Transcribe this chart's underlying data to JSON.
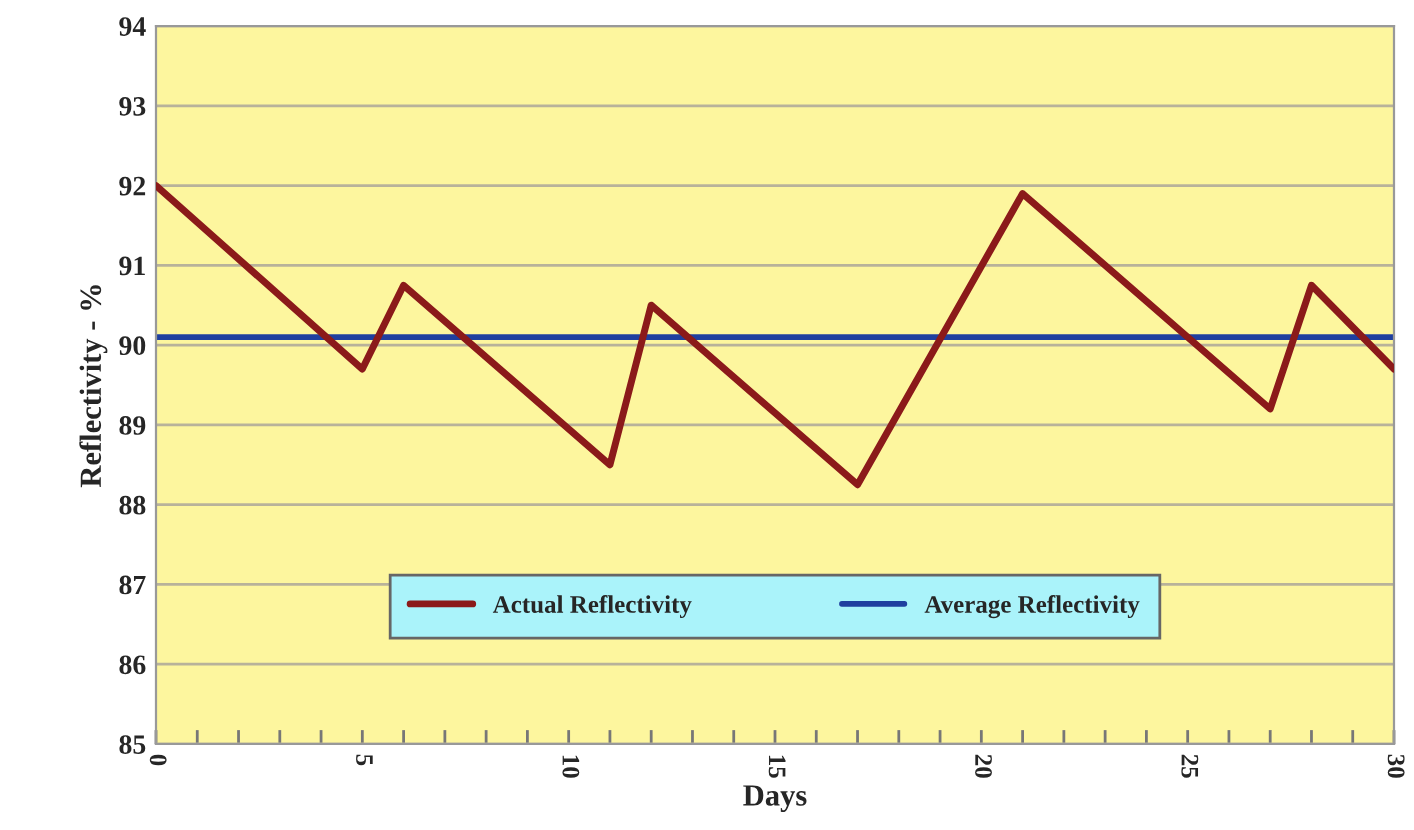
{
  "chart_data": {
    "type": "line",
    "xlabel": "Days",
    "ylabel": "Reflectivity - %",
    "series": [
      {
        "name": "Actual Reflectivity",
        "color": "#8b1a1a",
        "x": [
          0,
          5,
          6,
          11,
          12,
          17,
          21,
          27,
          28,
          30
        ],
        "values": [
          92.0,
          89.7,
          90.75,
          88.5,
          90.5,
          88.25,
          91.9,
          89.2,
          90.75,
          89.7
        ]
      }
    ],
    "ref_lines": [
      {
        "axis": "y",
        "value": 90.1,
        "label": "Average Reflectivity",
        "color": "#1f3f9f"
      }
    ],
    "xlim": [
      0,
      30
    ],
    "ylim": [
      85,
      94
    ],
    "xticks": [
      0,
      {
        "value": 1,
        "label": null
      },
      {
        "value": 2,
        "label": null
      },
      {
        "value": 3,
        "label": null
      },
      {
        "value": 4,
        "label": null
      },
      5,
      {
        "value": 6,
        "label": null
      },
      {
        "value": 7,
        "label": null
      },
      {
        "value": 8,
        "label": null
      },
      {
        "value": 9,
        "label": null
      },
      10,
      {
        "value": 11,
        "label": null
      },
      {
        "value": 12,
        "label": null
      },
      {
        "value": 13,
        "label": null
      },
      {
        "value": 14,
        "label": null
      },
      15,
      {
        "value": 16,
        "label": null
      },
      {
        "value": 17,
        "label": null
      },
      {
        "value": 18,
        "label": null
      },
      {
        "value": 19,
        "label": null
      },
      20,
      {
        "value": 21,
        "label": null
      },
      {
        "value": 22,
        "label": null
      },
      {
        "value": 23,
        "label": null
      },
      {
        "value": 24,
        "label": null
      },
      25,
      {
        "value": 26,
        "label": null
      },
      {
        "value": 27,
        "label": null
      },
      {
        "value": 28,
        "label": null
      },
      {
        "value": 29,
        "label": null
      },
      30
    ],
    "yticks": [
      85,
      86,
      87,
      88,
      89,
      90,
      91,
      92,
      93,
      94
    ],
    "grid": "y",
    "legend": "bottom",
    "marker": "none",
    "line_style": "solid"
  }
}
